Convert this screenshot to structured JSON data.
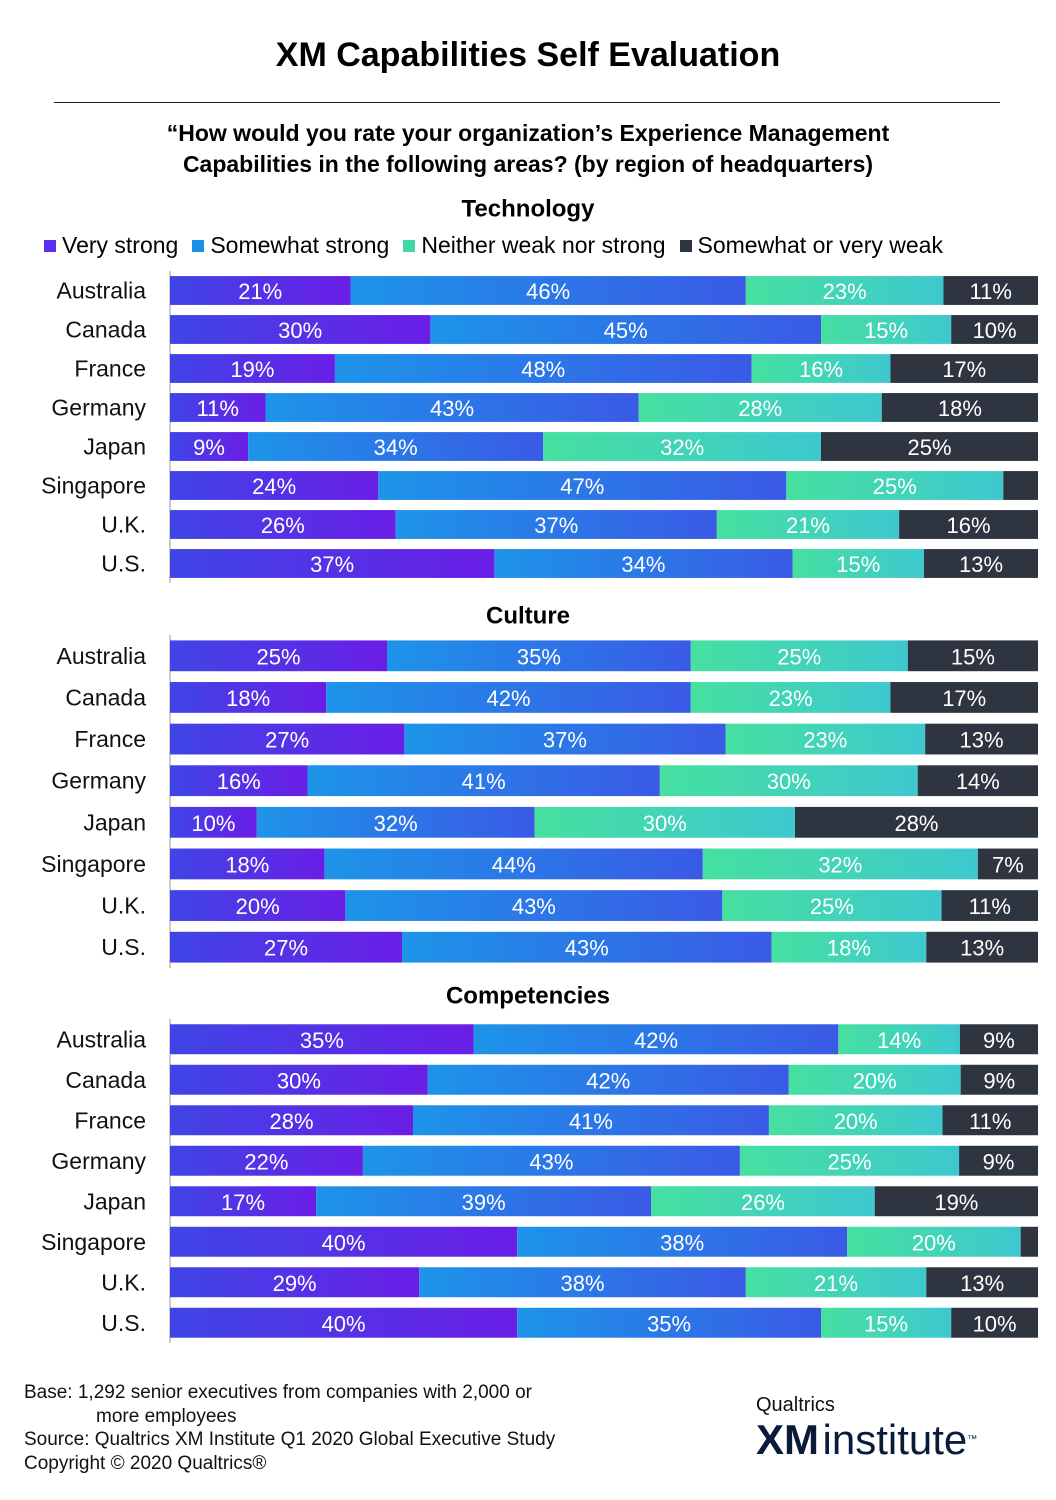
{
  "title": "XM Capabilities Self Evaluation",
  "question_line1": "“How would you rate your organization’s Experience Management",
  "question_line2": "Capabilities in the following areas? (by region of headquarters)",
  "legend": [
    {
      "label": "Very strong",
      "color": "#5b2ff0"
    },
    {
      "label": "Somewhat strong",
      "color": "#1a8fe8"
    },
    {
      "label": "Neither weak nor strong",
      "color": "#3fd9a3"
    },
    {
      "label": "Somewhat or very weak",
      "color": "#2e3540"
    }
  ],
  "chart_data": [
    {
      "type": "bar",
      "orientation": "horizontal-stacked-100",
      "title": "Technology",
      "categories": [
        "Australia",
        "Canada",
        "France",
        "Germany",
        "Japan",
        "Singapore",
        "U.K.",
        "U.S."
      ],
      "series": [
        {
          "name": "Very strong",
          "values": [
            21,
            30,
            19,
            11,
            9,
            24,
            26,
            37
          ],
          "labels": [
            "21%",
            "30%",
            "19%",
            "11%",
            "9%",
            "24%",
            "26%",
            "37%"
          ]
        },
        {
          "name": "Somewhat strong",
          "values": [
            46,
            45,
            48,
            43,
            34,
            47,
            37,
            34
          ],
          "labels": [
            "46%",
            "45%",
            "48%",
            "43%",
            "34%",
            "47%",
            "37%",
            "34%"
          ]
        },
        {
          "name": "Neither weak nor strong",
          "values": [
            23,
            15,
            16,
            28,
            32,
            25,
            21,
            15
          ],
          "labels": [
            "23%",
            "15%",
            "16%",
            "28%",
            "32%",
            "25%",
            "21%",
            "15%"
          ]
        },
        {
          "name": "Somewhat or very weak",
          "values": [
            11,
            10,
            17,
            18,
            25,
            4,
            16,
            13
          ],
          "labels": [
            "11%",
            "10%",
            "17%",
            "18%",
            "25%",
            "",
            "16%",
            "13%"
          ]
        }
      ]
    },
    {
      "type": "bar",
      "orientation": "horizontal-stacked-100",
      "title": "Culture",
      "categories": [
        "Australia",
        "Canada",
        "France",
        "Germany",
        "Japan",
        "Singapore",
        "U.K.",
        "U.S."
      ],
      "series": [
        {
          "name": "Very strong",
          "values": [
            25,
            18,
            27,
            16,
            10,
            18,
            20,
            27
          ],
          "labels": [
            "25%",
            "18%",
            "27%",
            "16%",
            "10%",
            "18%",
            "20%",
            "27%"
          ]
        },
        {
          "name": "Somewhat strong",
          "values": [
            35,
            42,
            37,
            41,
            32,
            44,
            43,
            43
          ],
          "labels": [
            "35%",
            "42%",
            "37%",
            "41%",
            "32%",
            "44%",
            "43%",
            "43%"
          ]
        },
        {
          "name": "Neither weak nor strong",
          "values": [
            25,
            23,
            23,
            30,
            30,
            32,
            25,
            18
          ],
          "labels": [
            "25%",
            "23%",
            "23%",
            "30%",
            "30%",
            "32%",
            "25%",
            "18%"
          ]
        },
        {
          "name": "Somewhat or very weak",
          "values": [
            15,
            17,
            13,
            14,
            28,
            7,
            11,
            13
          ],
          "labels": [
            "15%",
            "17%",
            "13%",
            "14%",
            "28%",
            "7%",
            "11%",
            "13%"
          ]
        }
      ]
    },
    {
      "type": "bar",
      "orientation": "horizontal-stacked-100",
      "title": "Competencies",
      "categories": [
        "Australia",
        "Canada",
        "France",
        "Germany",
        "Japan",
        "Singapore",
        "U.K.",
        "U.S."
      ],
      "series": [
        {
          "name": "Very strong",
          "values": [
            35,
            30,
            28,
            22,
            17,
            40,
            29,
            40
          ],
          "labels": [
            "35%",
            "30%",
            "28%",
            "22%",
            "17%",
            "40%",
            "29%",
            "40%"
          ]
        },
        {
          "name": "Somewhat strong",
          "values": [
            42,
            42,
            41,
            43,
            39,
            38,
            38,
            35
          ],
          "labels": [
            "42%",
            "42%",
            "41%",
            "43%",
            "39%",
            "38%",
            "38%",
            "35%"
          ]
        },
        {
          "name": "Neither weak nor strong",
          "values": [
            14,
            20,
            20,
            25,
            26,
            20,
            21,
            15
          ],
          "labels": [
            "14%",
            "20%",
            "20%",
            "25%",
            "26%",
            "20%",
            "21%",
            "15%"
          ]
        },
        {
          "name": "Somewhat or very weak",
          "values": [
            9,
            9,
            11,
            9,
            19,
            2,
            13,
            10
          ],
          "labels": [
            "9%",
            "9%",
            "11%",
            "9%",
            "19%",
            "",
            "13%",
            "10%"
          ]
        }
      ]
    }
  ],
  "footer": {
    "base_line1": "Base: 1,292 senior executives from companies with 2,000 or",
    "base_line2": "more employees",
    "source": "Source: Qualtrics XM Institute Q1 2020 Global Executive Study",
    "copyright": "Copyright © 2020 Qualtrics®"
  },
  "brand": {
    "small": "Qualtrics",
    "xm": "XM",
    "institute": "institute",
    "tm": "™"
  }
}
